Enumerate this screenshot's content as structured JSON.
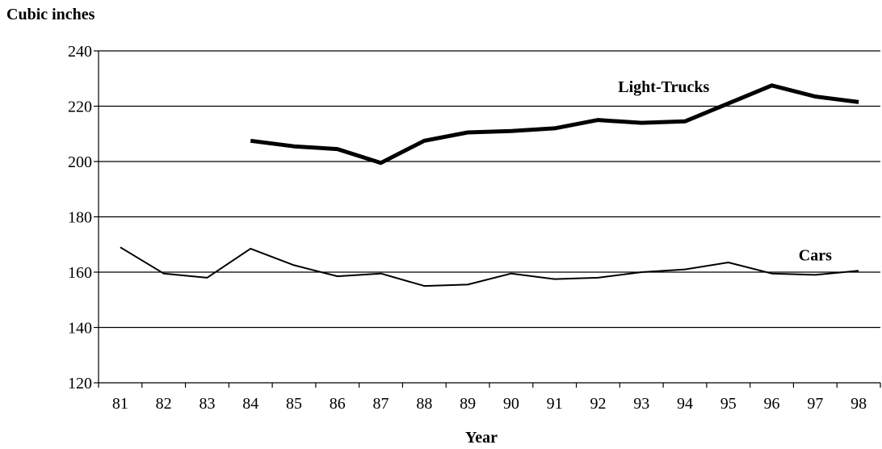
{
  "chart_data": {
    "type": "line",
    "ylabel": "Cubic inches",
    "xlabel": "Year",
    "ylim": [
      120,
      240
    ],
    "yticks": [
      120,
      140,
      160,
      180,
      200,
      220,
      240
    ],
    "grid": "horizontal",
    "categories": [
      "81",
      "82",
      "83",
      "84",
      "85",
      "86",
      "87",
      "88",
      "89",
      "90",
      "91",
      "92",
      "93",
      "94",
      "95",
      "96",
      "97",
      "98"
    ],
    "series": [
      {
        "name": "Light-Trucks",
        "stroke": "#000000",
        "weight": "heavy",
        "values": [
          null,
          null,
          null,
          207.5,
          205.5,
          204.5,
          199.5,
          207.5,
          210.5,
          211,
          212,
          215,
          214,
          214.5,
          221,
          227.5,
          223.5,
          221.5
        ]
      },
      {
        "name": "Cars",
        "stroke": "#000000",
        "weight": "light",
        "values": [
          169,
          159.5,
          158,
          168.5,
          162.5,
          158.5,
          159.5,
          155,
          155.5,
          159.5,
          157.5,
          158,
          160,
          161,
          163.5,
          159.5,
          159,
          160.5
        ]
      }
    ]
  }
}
